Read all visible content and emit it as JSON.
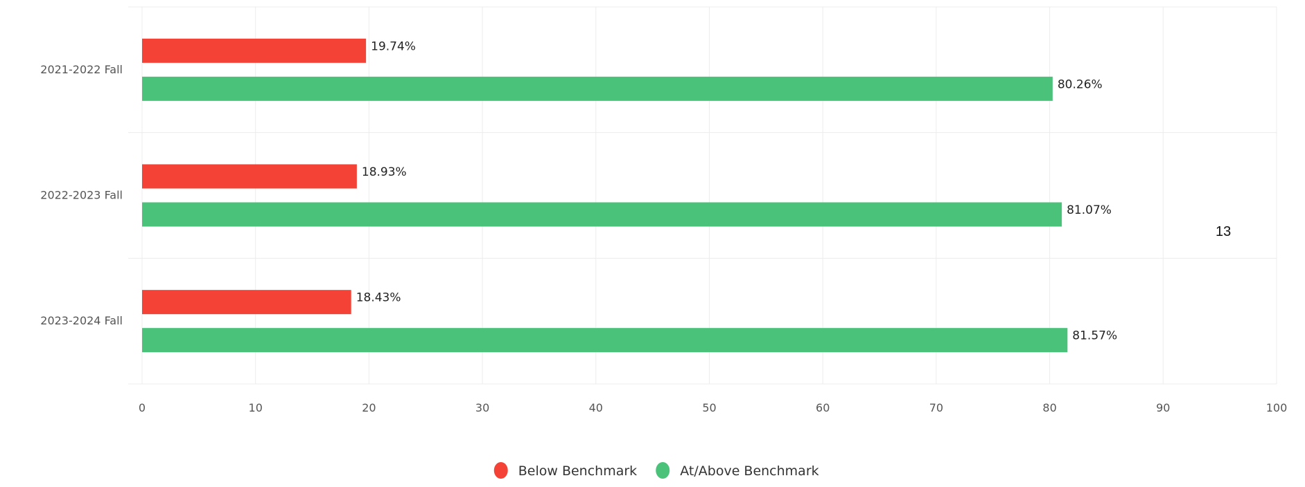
{
  "page_number": "13",
  "chart_data": {
    "type": "bar",
    "orientation": "horizontal",
    "categories": [
      "2021-2022 Fall",
      "2022-2023 Fall",
      "2023-2024 Fall"
    ],
    "series": [
      {
        "name": "Below Benchmark",
        "color": "#f44336",
        "values": [
          19.74,
          18.93,
          18.43
        ],
        "labels": [
          "19.74%",
          "18.93%",
          "18.43%"
        ]
      },
      {
        "name": "At/Above Benchmark",
        "color": "#4bc27a",
        "values": [
          80.26,
          81.07,
          81.57
        ],
        "labels": [
          "80.26%",
          "81.07%",
          "81.57%"
        ]
      }
    ],
    "xlim": [
      0,
      100
    ],
    "xticks": [
      "0",
      "10",
      "20",
      "30",
      "40",
      "50",
      "60",
      "70",
      "80",
      "90",
      "100"
    ],
    "grid": true,
    "legend_position": "bottom-center"
  }
}
